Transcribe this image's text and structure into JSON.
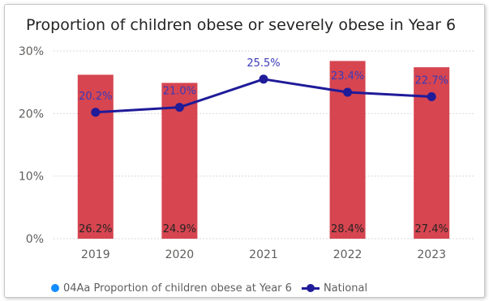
{
  "colors": {
    "bar": "#D64550",
    "line": "#1F1B99",
    "legend_dot": "#118DFF",
    "grid": "#D9D9D9",
    "axis_text": "#605E5C",
    "bar_label": "#252423",
    "line_label": "#3A3AB8"
  },
  "legend": {
    "bar_series": "04Aa Proportion of children obese at Year 6",
    "line_series": "National"
  },
  "chart_data": {
    "type": "bar",
    "title": "Proportion of children obese or severely obese in Year 6",
    "xlabel": "",
    "ylabel": "",
    "categories": [
      "2019",
      "2020",
      "2021",
      "2022",
      "2023"
    ],
    "ylim": [
      0,
      30
    ],
    "yticks": [
      "0%",
      "10%",
      "20%",
      "30%"
    ],
    "grid": true,
    "legend_position": "bottom-left",
    "series": [
      {
        "name": "04Aa Proportion of children obese at Year 6",
        "type": "bar",
        "values": [
          26.2,
          24.9,
          null,
          28.4,
          27.4
        ],
        "labels": [
          "26.2%",
          "24.9%",
          "",
          "28.4%",
          "27.4%"
        ]
      },
      {
        "name": "National",
        "type": "line",
        "values": [
          20.2,
          21.0,
          25.5,
          23.4,
          22.7
        ],
        "labels": [
          "20.2%",
          "21.0%",
          "25.5%",
          "23.4%",
          "22.7%"
        ]
      }
    ]
  }
}
